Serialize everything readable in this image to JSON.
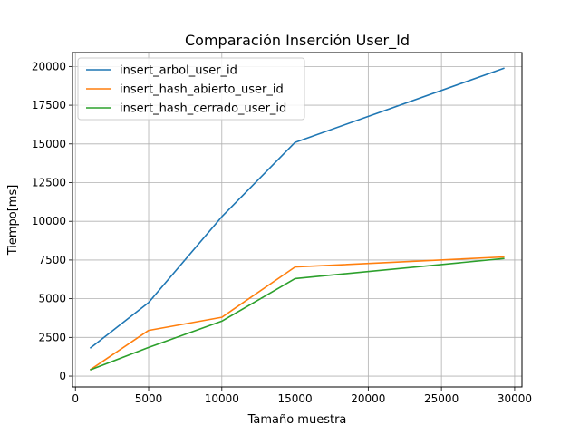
{
  "chart_data": {
    "type": "line",
    "title": "Comparación Inserción User_Id",
    "xlabel": "Tamaño muestra",
    "ylabel": "Tiempo[ms]",
    "xlim": [
      -200,
      30500
    ],
    "ylim": [
      -700,
      20900
    ],
    "xticks": [
      0,
      5000,
      10000,
      15000,
      20000,
      25000,
      30000
    ],
    "yticks": [
      0,
      2500,
      5000,
      7500,
      10000,
      12500,
      15000,
      17500,
      20000
    ],
    "x": [
      1000,
      5000,
      10000,
      15000,
      29300
    ],
    "grid": true,
    "legend_position": "top-left",
    "series": [
      {
        "name": "insert_arbol_user_id",
        "color": "#1f77b4",
        "values": [
          1800,
          4750,
          10300,
          15100,
          19900
        ]
      },
      {
        "name": "insert_hash_abierto_user_id",
        "color": "#ff7f0e",
        "values": [
          400,
          2950,
          3800,
          7050,
          7700
        ]
      },
      {
        "name": "insert_hash_cerrado_user_id",
        "color": "#2ca02c",
        "values": [
          400,
          1850,
          3550,
          6300,
          7600
        ]
      }
    ]
  }
}
